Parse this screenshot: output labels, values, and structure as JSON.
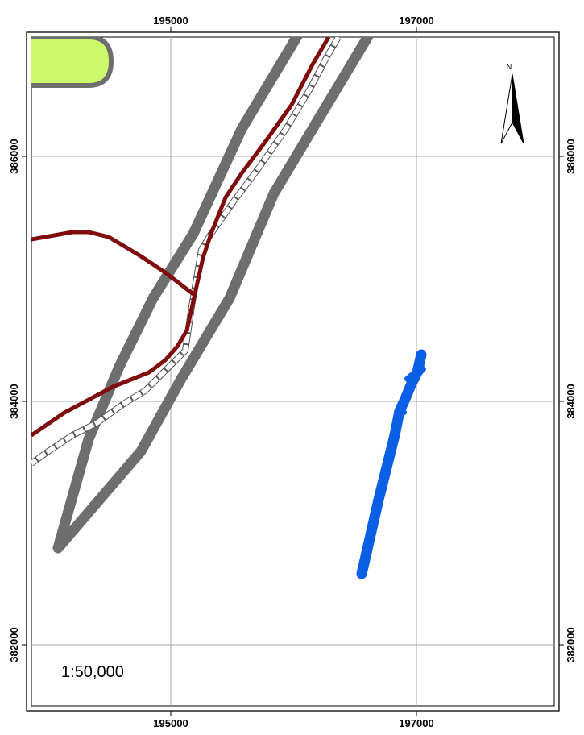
{
  "map": {
    "x_ticks": [
      "195000",
      "197000"
    ],
    "y_ticks": [
      "386000",
      "384000",
      "382000"
    ],
    "scale_label": "1:50,000",
    "north_label": "N"
  },
  "colors": {
    "highway": "#6e6e6e",
    "road": "#7f0d0d",
    "railway_casing": "#555555",
    "river": "#0a5fe6",
    "landuse": "#cdf86a",
    "landuse_border": "#6e6e6e",
    "grid": "#aaaaaa"
  },
  "icons": {
    "north_arrow": "north-arrow-icon"
  }
}
